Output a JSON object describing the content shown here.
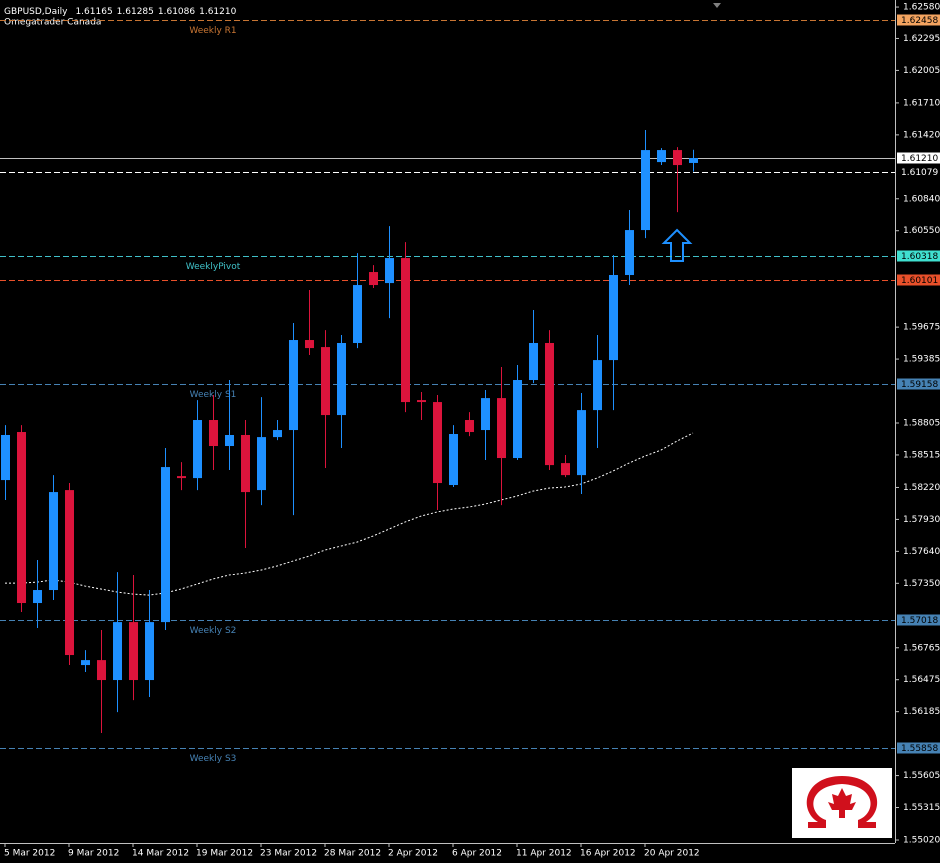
{
  "chart_data": {
    "type": "candlestick",
    "title": "GBPUSD,Daily",
    "subtitle": "Omegatrader Canada",
    "last_bar_labels": [
      "1.61165",
      "1.61285",
      "1.61086",
      "1.61210"
    ],
    "categories": [
      "5 Mar 2012",
      null,
      null,
      null,
      "9 Mar 2012",
      null,
      null,
      null,
      "14 Mar 2012",
      null,
      null,
      null,
      "19 Mar 2012",
      null,
      null,
      null,
      "23 Mar 2012",
      null,
      null,
      null,
      "28 Mar 2012",
      null,
      null,
      null,
      "2 Apr 2012",
      null,
      null,
      null,
      "6 Apr 2012",
      null,
      null,
      null,
      "11 Apr 2012",
      null,
      null,
      null,
      "16 Apr 2012",
      null,
      null,
      null,
      "20 Apr 2012",
      null,
      null,
      null
    ],
    "open": [
      1.58287,
      1.58723,
      1.57171,
      1.57289,
      1.58196,
      1.56608,
      1.56653,
      1.56472,
      1.56998,
      1.56472,
      1.56998,
      1.58323,
      1.58305,
      1.58832,
      1.58596,
      1.58696,
      1.58196,
      1.58677,
      1.58741,
      1.59558,
      1.59494,
      1.58877,
      1.59531,
      1.60175,
      1.60075,
      1.60302,
      1.59013,
      1.58995,
      1.58242,
      1.58832,
      1.58741,
      1.59031,
      1.58487,
      1.59195,
      1.59531,
      1.58441,
      1.58332,
      1.58922,
      1.59376,
      1.60148,
      1.60556,
      1.61173,
      1.61282,
      1.61165
    ],
    "high": [
      1.58786,
      1.58786,
      1.57561,
      1.58332,
      1.5826,
      1.56744,
      1.56926,
      1.57452,
      1.57425,
      1.57289,
      1.58578,
      1.5845,
      1.59013,
      1.59059,
      1.59195,
      1.58832,
      1.5904,
      1.58832,
      1.59712,
      1.60012,
      1.59648,
      1.59603,
      1.60347,
      1.60238,
      1.60592,
      1.60447,
      1.59086,
      1.59059,
      1.58786,
      1.58904,
      1.59104,
      1.59313,
      1.59331,
      1.5983,
      1.59648,
      1.58514,
      1.59077,
      1.59603,
      1.60329,
      1.60738,
      1.61464,
      1.613,
      1.61309,
      1.61285
    ],
    "low": [
      1.58106,
      1.57089,
      1.56944,
      1.57198,
      1.56608,
      1.56545,
      1.55991,
      1.56181,
      1.5629,
      1.56318,
      1.56926,
      1.58196,
      1.58196,
      1.58378,
      1.58378,
      1.5767,
      1.5806,
      1.5865,
      1.57969,
      1.59422,
      1.58396,
      1.58578,
      1.59485,
      1.6003,
      1.59757,
      1.58904,
      1.58832,
      1.58015,
      1.58224,
      1.58686,
      1.58469,
      1.5806,
      1.58469,
      1.59167,
      1.58378,
      1.58314,
      1.5816,
      1.58578,
      1.58922,
      1.60057,
      1.60483,
      1.61146,
      1.60719,
      1.61086
    ],
    "close": [
      1.58696,
      1.57171,
      1.57289,
      1.58178,
      1.56699,
      1.56653,
      1.56472,
      1.56998,
      1.56472,
      1.56998,
      1.58405,
      1.58305,
      1.58832,
      1.58596,
      1.58696,
      1.58178,
      1.58677,
      1.58741,
      1.59558,
      1.59485,
      1.58877,
      1.59531,
      1.60057,
      1.60057,
      1.60302,
      1.58995,
      1.58995,
      1.5826,
      1.58705,
      1.58723,
      1.59031,
      1.58487,
      1.59195,
      1.59531,
      1.58423,
      1.58332,
      1.58922,
      1.59376,
      1.60148,
      1.60556,
      1.61282,
      1.61282,
      1.61146,
      1.6121
    ],
    "bull_color": "#1e90ff",
    "bear_color": "#dc143c",
    "ma": {
      "color": "#ffffff",
      "values": [
        1.57352,
        1.57352,
        1.57361,
        1.5738,
        1.57361,
        1.57325,
        1.57298,
        1.57271,
        1.57252,
        1.57243,
        1.57262,
        1.57298,
        1.57343,
        1.57389,
        1.57425,
        1.57443,
        1.5747,
        1.57507,
        1.57552,
        1.57597,
        1.57652,
        1.57688,
        1.57724,
        1.57779,
        1.57842,
        1.57906,
        1.5796,
        1.57997,
        1.58024,
        1.58042,
        1.58069,
        1.58106,
        1.58142,
        1.58187,
        1.58214,
        1.58224,
        1.58251,
        1.58305,
        1.58369,
        1.58441,
        1.58505,
        1.58559,
        1.58641,
        1.58714
      ]
    },
    "levels": [
      {
        "name": "Weekly R1",
        "value": 1.62458,
        "color": "#c87533",
        "label_bg": "#f4a460",
        "label_color": "#000000"
      },
      {
        "value": 1.61079,
        "color": "#ffffff",
        "label_bg": "#000000",
        "label_color": "#ffffff"
      },
      {
        "name": "WeeklyPivot",
        "value": 1.60318,
        "color": "#40c0c8",
        "label_bg": "#40e0d0",
        "label_color": "#000000"
      },
      {
        "value": 1.60101,
        "color": "#e8502a",
        "label_bg": "#e8502a",
        "label_color": "#000000"
      },
      {
        "name": "Weekly S1",
        "value": 1.59158,
        "color": "#4682b4",
        "label_bg": "#4682b4",
        "label_color": "#000000"
      },
      {
        "name": "Weekly S2",
        "value": 1.57018,
        "color": "#4682b4",
        "label_bg": "#4682b4",
        "label_color": "#000000"
      },
      {
        "name": "Weekly S3",
        "value": 1.55858,
        "color": "#4682b4",
        "label_bg": "#4682b4",
        "label_color": "#000000"
      }
    ],
    "ylim": [
      1.54993,
      1.62644
    ],
    "yticks": [
      {
        "value": 1.6258,
        "label": "1.62580"
      },
      1.62295,
      1.62005,
      {
        "value": 1.6171,
        "label": "1.61710"
      },
      {
        "value": 1.6142,
        "label": "1.61420"
      },
      {
        "value": 1.6084,
        "label": "1.60840"
      },
      {
        "value": 1.6055,
        "label": "1.60550"
      },
      1.59675,
      1.59385,
      1.58805,
      1.58515,
      {
        "value": 1.5822,
        "label": "1.58220"
      },
      {
        "value": 1.5793,
        "label": "1.57930"
      },
      {
        "value": 1.5764,
        "label": "1.57640"
      },
      {
        "value": 1.5735,
        "label": "1.57350"
      },
      1.56765,
      1.56475,
      1.56185,
      1.55605,
      1.55315,
      {
        "value": 1.5502,
        "label": "1.55020"
      }
    ]
  }
}
